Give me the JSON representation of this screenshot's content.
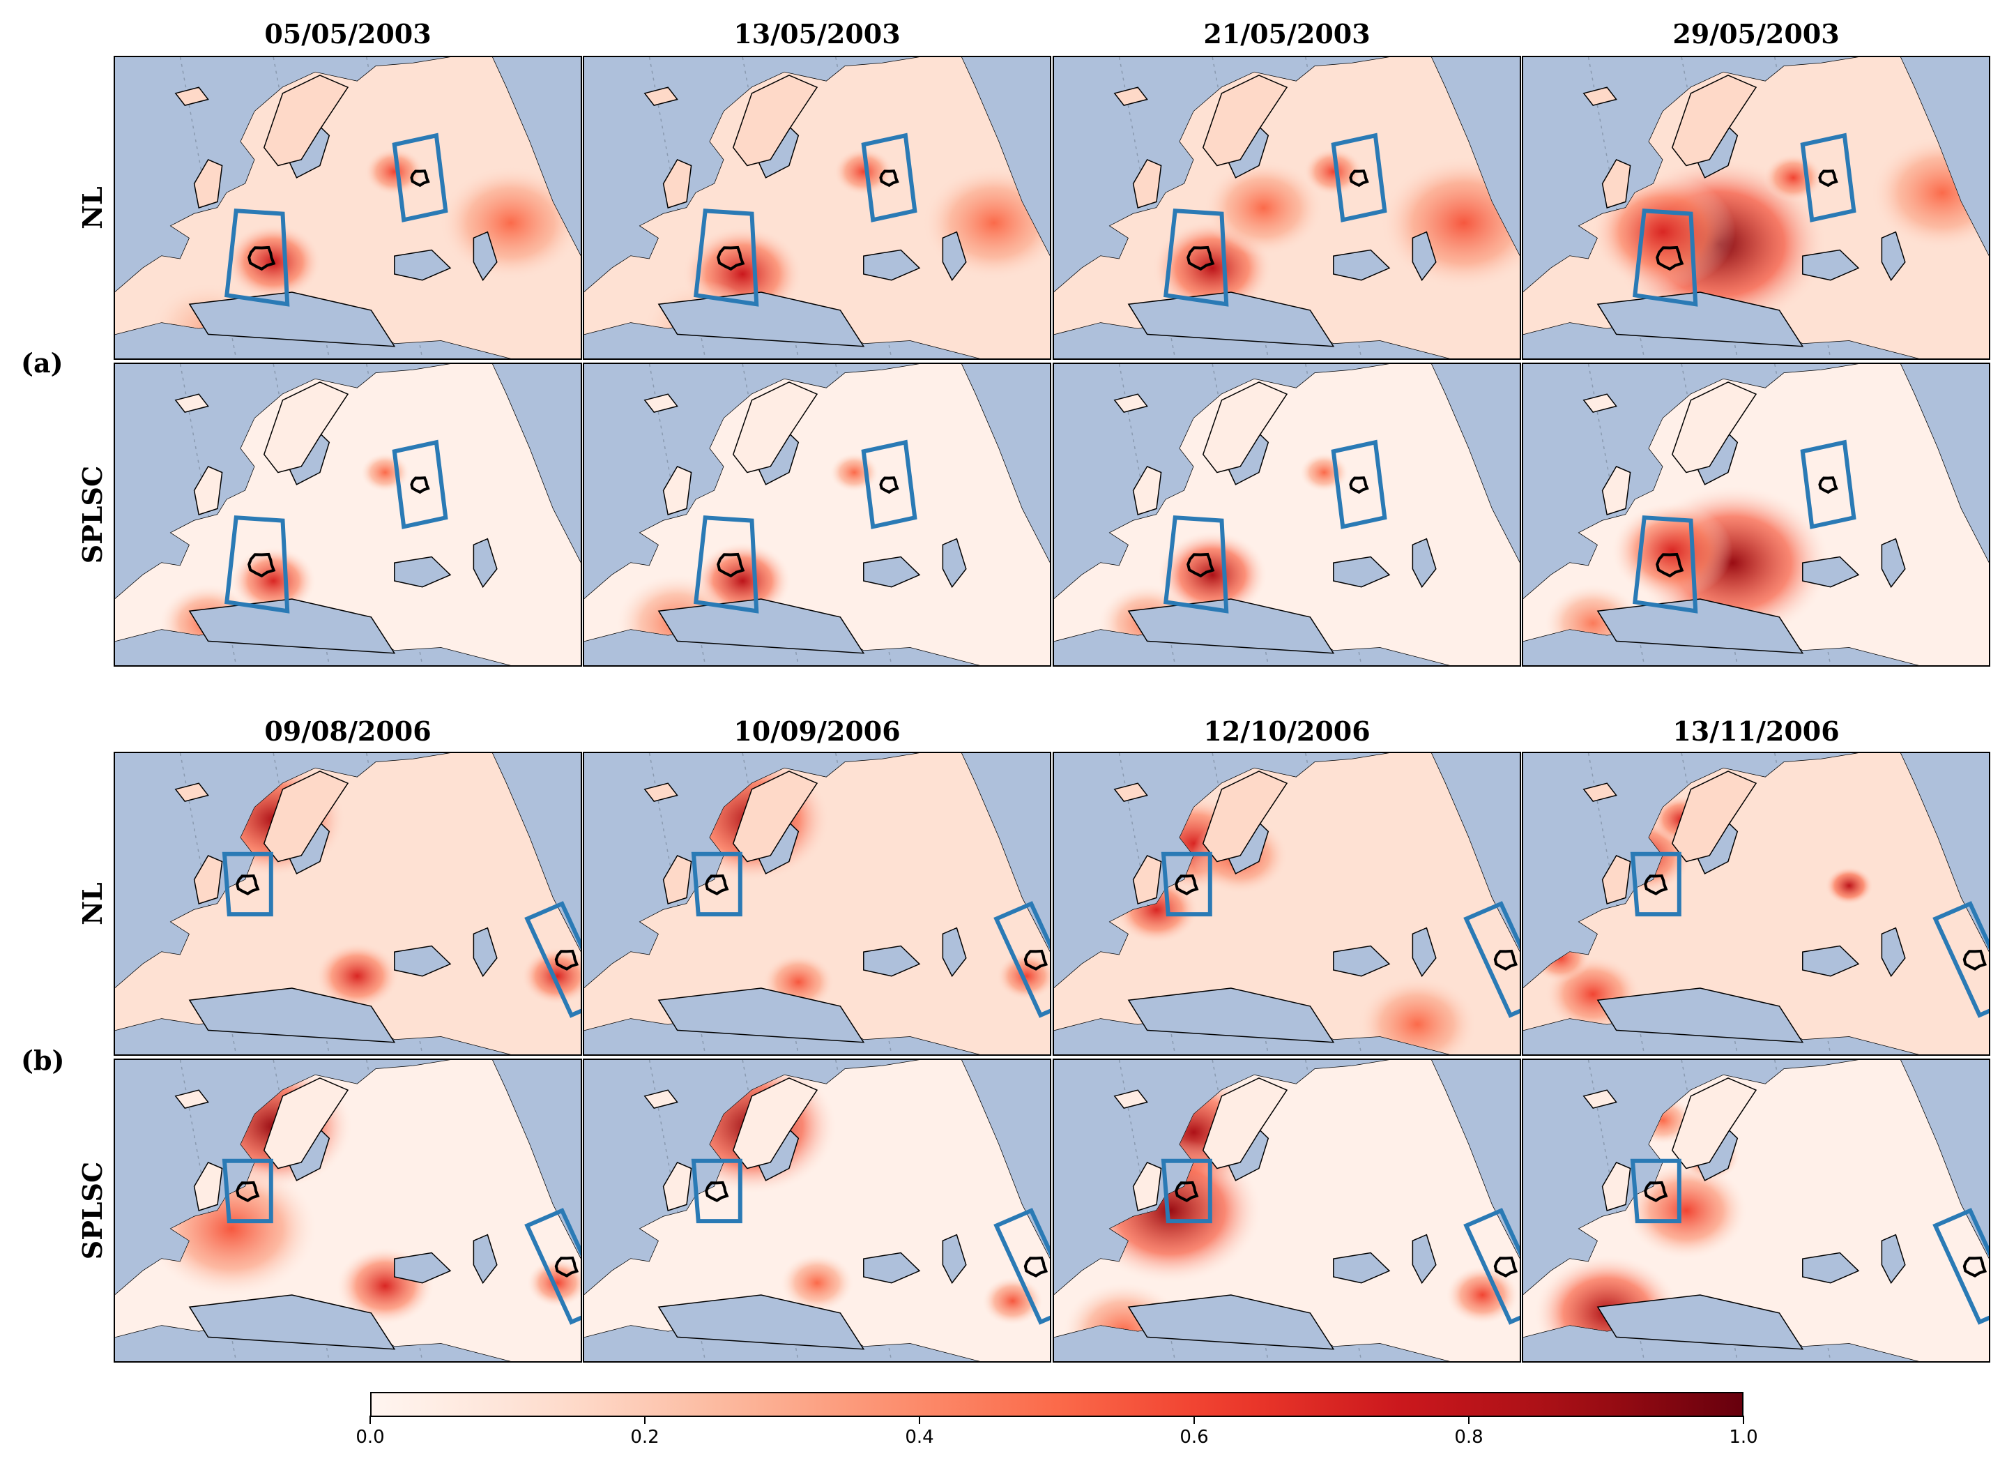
{
  "figure": {
    "sections": [
      {
        "label": "(a)",
        "dates": [
          "05/05/2003",
          "13/05/2003",
          "21/05/2003",
          "29/05/2003"
        ],
        "rows": [
          "NL",
          "SPLSC"
        ],
        "box_a": [
          [
            0.26,
            0.51
          ],
          [
            0.36,
            0.52
          ],
          [
            0.37,
            0.82
          ],
          [
            0.24,
            0.79
          ]
        ],
        "box_b": [
          [
            0.6,
            0.29
          ],
          [
            0.69,
            0.26
          ],
          [
            0.71,
            0.51
          ],
          [
            0.62,
            0.54
          ]
        ]
      },
      {
        "label": "(b)",
        "dates": [
          "09/08/2006",
          "10/09/2006",
          "12/10/2006",
          "13/11/2006"
        ],
        "rows": [
          "NL",
          "SPLSC"
        ],
        "box_a": [
          [
            0.235,
            0.335
          ],
          [
            0.335,
            0.335
          ],
          [
            0.335,
            0.535
          ],
          [
            0.245,
            0.535
          ]
        ],
        "box_b": [
          [
            0.885,
            0.55
          ],
          [
            0.96,
            0.5
          ],
          [
            1.055,
            0.82
          ],
          [
            0.98,
            0.87
          ]
        ]
      }
    ]
  },
  "colorbar": {
    "colormap": "Reds",
    "range": [
      0.0,
      1.0
    ],
    "tick_labels": [
      "0.0",
      "0.2",
      "0.4",
      "0.6",
      "0.8",
      "1.0"
    ],
    "tick_values": [
      0.0,
      0.2,
      0.4,
      0.6,
      0.8,
      1.0
    ]
  },
  "colors": {
    "ocean": "#aec0db",
    "land_low": "#fff5f0",
    "land_high": "#67000d",
    "box": "#2a7ab5",
    "contour": "#000000"
  }
}
